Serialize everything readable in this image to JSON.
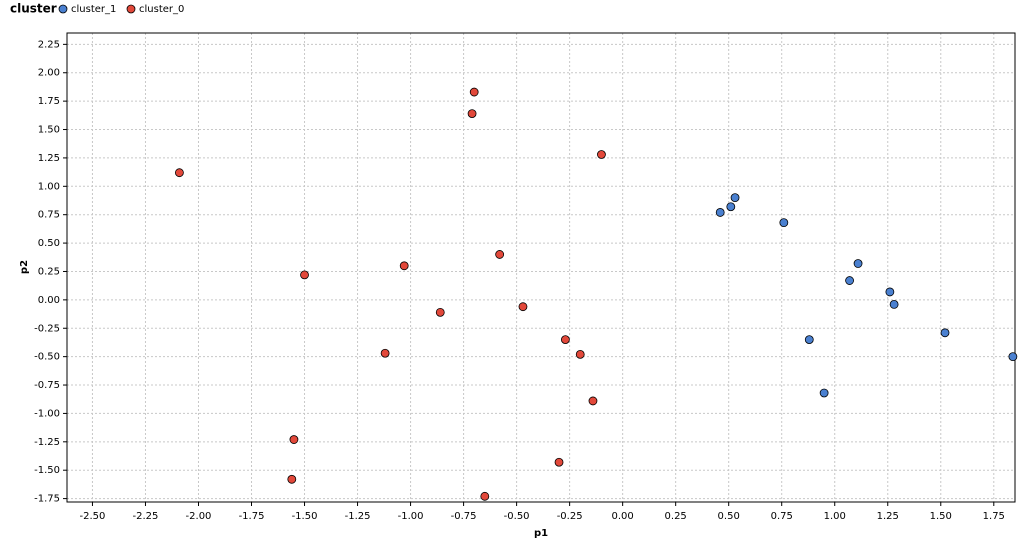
{
  "chart_data": {
    "type": "scatter",
    "legend_title": "cluster",
    "x_label": "p1",
    "y_label": "p2",
    "xlim": [
      -2.62,
      1.85
    ],
    "ylim": [
      -1.78,
      2.35
    ],
    "grid": true,
    "xticks": [
      {
        "value": -2.5,
        "label": "-2.50"
      },
      -2.25,
      {
        "value": -2,
        "label": "-2.00"
      },
      -1.75,
      {
        "value": -1.5,
        "label": "-1.50"
      },
      -1.25,
      {
        "value": -1,
        "label": "-1.00"
      },
      -0.75,
      {
        "value": -0.5,
        "label": "-0.50"
      },
      -0.25,
      {
        "value": 0,
        "label": "0.00"
      },
      0.25,
      {
        "value": 0.5,
        "label": "0.50"
      },
      0.75,
      {
        "value": 1,
        "label": "1.00"
      },
      1.25,
      {
        "value": 1.5,
        "label": "1.50"
      },
      1.75
    ],
    "yticks": [
      -1.75,
      {
        "value": -1.5,
        "label": "-1.50"
      },
      -1.25,
      {
        "value": -1,
        "label": "-1.00"
      },
      -0.75,
      {
        "value": -0.5,
        "label": "-0.50"
      },
      -0.25,
      {
        "value": 0,
        "label": "0.00"
      },
      0.25,
      {
        "value": 0.5,
        "label": "0.50"
      },
      0.75,
      {
        "value": 1,
        "label": "1.00"
      },
      1.25,
      {
        "value": 1.5,
        "label": "1.50"
      },
      1.75,
      {
        "value": 2,
        "label": "2.00"
      },
      2.25
    ],
    "series": [
      {
        "name": "cluster_1",
        "color": "#4a80d0",
        "x": [
          0.53,
          0.51,
          0.46,
          0.76,
          1.11,
          1.07,
          1.26,
          1.28,
          1.52,
          0.88,
          1.84,
          0.95
        ],
        "values": [
          0.9,
          0.82,
          0.77,
          0.68,
          0.32,
          0.17,
          0.07,
          -0.04,
          -0.29,
          -0.35,
          -0.5,
          -0.82
        ]
      },
      {
        "name": "cluster_0",
        "color": "#e2483a",
        "x": [
          -0.7,
          -0.71,
          -0.1,
          -2.09,
          -0.58,
          -1.03,
          -1.5,
          -0.47,
          -0.86,
          -0.27,
          -1.12,
          -0.2,
          -0.14,
          -1.55,
          -0.3,
          -1.56,
          -0.65
        ],
        "values": [
          1.83,
          1.64,
          1.28,
          1.12,
          0.4,
          0.3,
          0.22,
          -0.06,
          -0.11,
          -0.35,
          -0.47,
          -0.48,
          -0.89,
          -1.23,
          -1.43,
          -1.58,
          -1.73
        ]
      }
    ]
  }
}
